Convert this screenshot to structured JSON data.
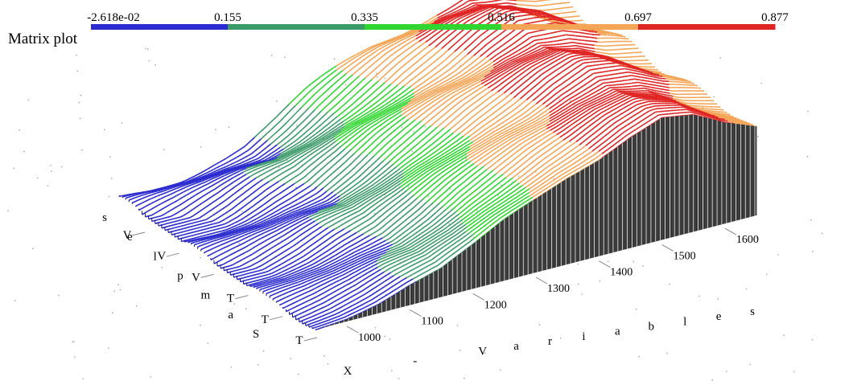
{
  "title": "Matrix plot",
  "colorbar": {
    "labels": [
      "-2.618e-02",
      "0.155",
      "0.335",
      "0.516",
      "0.697",
      "0.877"
    ],
    "colors": [
      "#2b2bcf",
      "#3c9a6a",
      "#2fd62f",
      "#f5a556",
      "#e02424"
    ]
  },
  "chart_data": {
    "type": "surface",
    "title": "Matrix plot",
    "x_axis_label": "X - Variables",
    "x_ticks": [
      1000,
      1100,
      1200,
      1300,
      1400,
      1500,
      1600
    ],
    "y_axis_label": "Samples",
    "y_tick_labels": [
      "T",
      "T",
      "T",
      "V",
      "V",
      "V"
    ],
    "z_range": [
      -0.02618,
      0.877
    ],
    "colormap_levels": [
      -0.02618,
      0.155,
      0.335,
      0.516,
      0.697,
      0.877
    ],
    "x_range": [
      950,
      1650
    ],
    "description_profile": {
      "x": [
        950,
        1000,
        1050,
        1100,
        1150,
        1200,
        1250,
        1300,
        1350,
        1400,
        1450,
        1500,
        1550,
        1600,
        1650
      ],
      "z": [
        0.0,
        0.03,
        0.08,
        0.15,
        0.2,
        0.3,
        0.42,
        0.52,
        0.62,
        0.7,
        0.8,
        0.87,
        0.82,
        0.7,
        0.62
      ]
    }
  }
}
